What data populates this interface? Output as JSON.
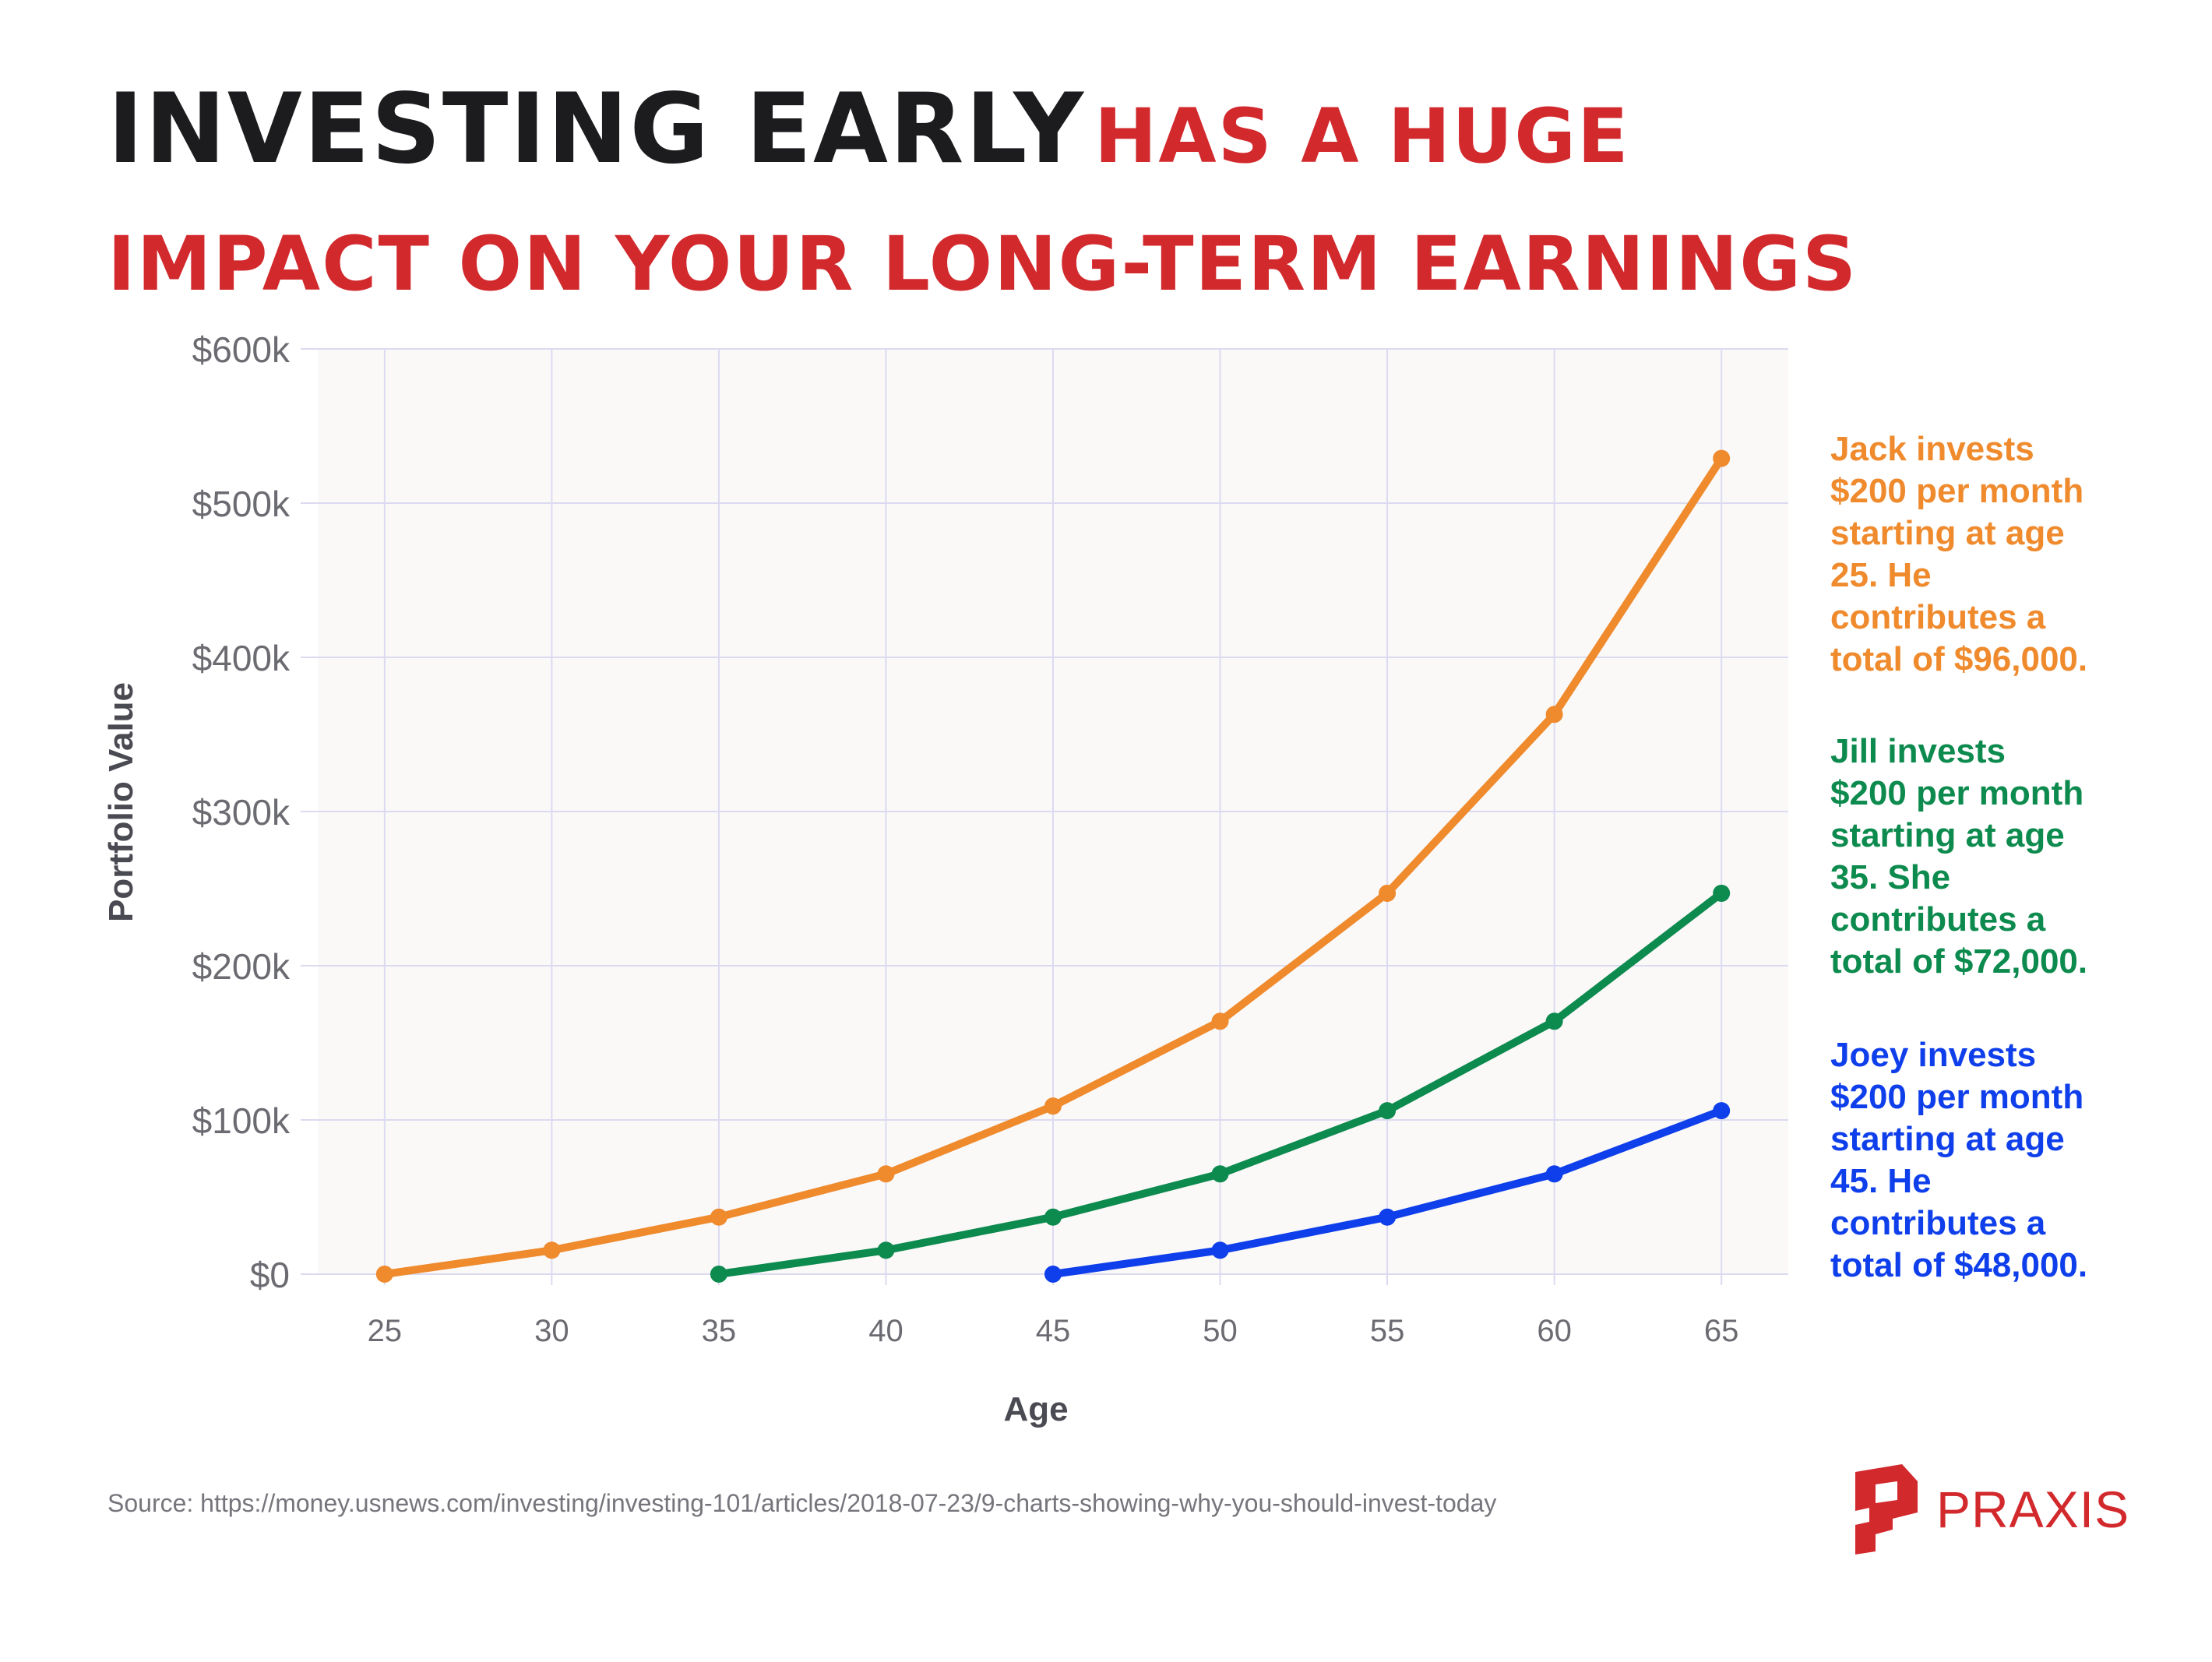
{
  "title": {
    "line1_dark": "INVESTING EARLY",
    "line1_red": "HAS A HUGE",
    "line2_red": "IMPACT ON YOUR LONG-TERM EARNINGS"
  },
  "chart_data": {
    "type": "line",
    "xlabel": "Age",
    "ylabel": "Portfolio Value",
    "x_ticks": [
      25,
      30,
      35,
      40,
      45,
      50,
      55,
      60,
      65
    ],
    "y_ticks": [
      "$0",
      "$100k",
      "$200k",
      "$300k",
      "$400k",
      "$500k",
      "$600k"
    ],
    "ylim": [
      0,
      600000
    ],
    "xlim": [
      23,
      67
    ],
    "grid": true,
    "series": [
      {
        "color": "#ef8a2d",
        "x": [
          25,
          30,
          35,
          40,
          45,
          50,
          55,
          60,
          65
        ],
        "y": [
          0,
          15500,
          37000,
          65000,
          109000,
          164000,
          247000,
          363000,
          529000
        ]
      },
      {
        "color": "#0d8a4e",
        "x": [
          35,
          40,
          45,
          50,
          55,
          60,
          65
        ],
        "y": [
          0,
          15500,
          37000,
          65000,
          106000,
          164000,
          247000
        ]
      },
      {
        "color": "#0f3fea",
        "x": [
          45,
          50,
          55,
          60,
          65
        ],
        "y": [
          0,
          15500,
          37000,
          65000,
          106000
        ]
      }
    ]
  },
  "annotations": [
    {
      "color": "#ef8a2d",
      "lines": [
        "Jack invests",
        "$200 per month",
        "starting at age",
        "25. He",
        "contributes a",
        "total of $96,000."
      ]
    },
    {
      "color": "#0d8a4e",
      "lines": [
        "Jill invests",
        "$200 per month",
        "starting at age",
        "35. She",
        "contributes a",
        "total of $72,000."
      ]
    },
    {
      "color": "#0f3fea",
      "lines": [
        "Joey invests",
        "$200 per month",
        "starting at age",
        "45. He",
        "contributes a",
        "total of $48,000."
      ]
    }
  ],
  "source": "Source: https://money.usnews.com/investing/investing-101/articles/2018-07-23/9-charts-showing-why-you-should-invest-today",
  "logo": {
    "text": "PRAXIS",
    "color": "#d2292d"
  },
  "colors": {
    "plot_bg": "#faf9f8",
    "grid": "#dcdaf0",
    "title_dark": "#1c1c1f",
    "title_red": "#d2292d"
  }
}
